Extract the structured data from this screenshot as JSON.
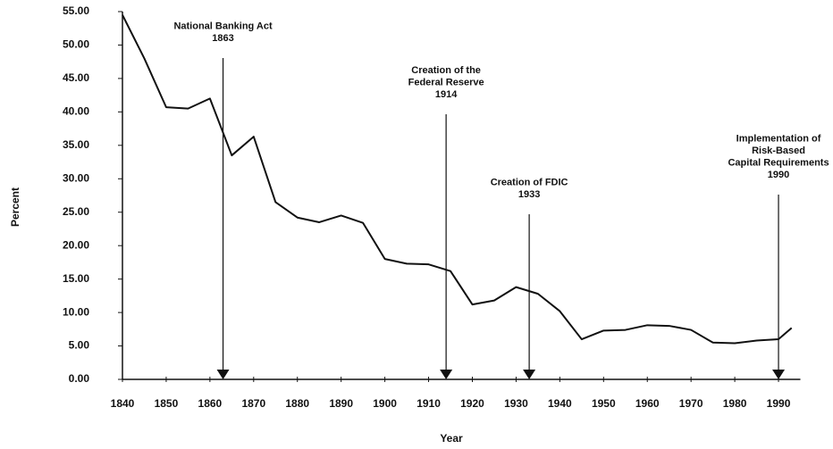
{
  "chart_data": {
    "type": "line",
    "x_label": "Year",
    "y_label": "Percent",
    "x": [
      1840,
      1845,
      1850,
      1855,
      1860,
      1865,
      1870,
      1875,
      1880,
      1885,
      1890,
      1895,
      1900,
      1905,
      1910,
      1915,
      1920,
      1925,
      1930,
      1935,
      1940,
      1945,
      1950,
      1955,
      1960,
      1965,
      1970,
      1975,
      1980,
      1985,
      1990,
      1993
    ],
    "values": [
      54.5,
      48,
      40.7,
      40.5,
      42,
      33.5,
      36.3,
      26.5,
      24.2,
      23.5,
      24.5,
      23.4,
      18,
      17.3,
      17.2,
      16.2,
      11.2,
      11.8,
      13.8,
      12.8,
      10.2,
      6,
      7.3,
      7.4,
      8.1,
      8,
      7.4,
      5.5,
      5.4,
      5.8,
      6,
      7.7
    ],
    "color": "#111111",
    "xlim": [
      1840,
      1995
    ],
    "ylim": [
      0,
      55
    ],
    "xticks": [
      1840,
      1850,
      1860,
      1870,
      1880,
      1890,
      1900,
      1910,
      1920,
      1930,
      1940,
      1950,
      1960,
      1970,
      1980,
      1990
    ],
    "yticks": [
      {
        "value": 0,
        "label": "0.00"
      },
      {
        "value": 5,
        "label": "5.00"
      },
      {
        "value": 10,
        "label": "10.00"
      },
      {
        "value": 15,
        "label": "15.00"
      },
      {
        "value": 20,
        "label": "20.00"
      },
      {
        "value": 25,
        "label": "25.00"
      },
      {
        "value": 30,
        "label": "30.00"
      },
      {
        "value": 35,
        "label": "35.00"
      },
      {
        "value": 40,
        "label": "40.00"
      },
      {
        "value": 45,
        "label": "45.00"
      },
      {
        "value": 50,
        "label": "50.00"
      },
      {
        "value": 55,
        "label": "55.00"
      }
    ],
    "annotations": [
      {
        "text": [
          "National Banking Act"
        ],
        "year": 1863
      },
      {
        "text": [
          "Creation of the",
          "Federal Reserve"
        ],
        "year": 1914
      },
      {
        "text": [
          "Creation of FDIC"
        ],
        "year": 1933
      },
      {
        "text": [
          "Implementation of",
          "Risk-Based",
          "Capital Requirements"
        ],
        "year": 1990
      }
    ]
  }
}
